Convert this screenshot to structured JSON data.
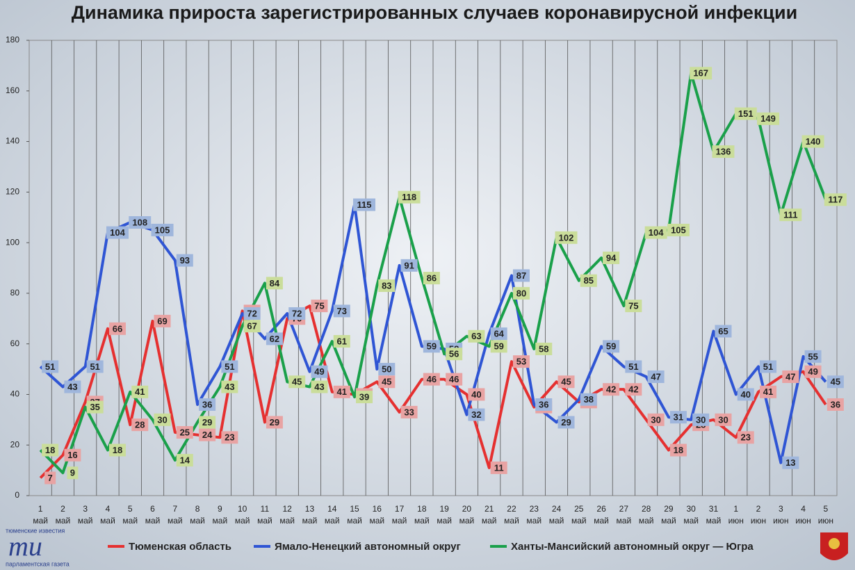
{
  "chart_data": {
    "type": "line",
    "title": "Динамика прироста зарегистрированных случаев коронавирусной инфекции",
    "categories": [
      "1 май",
      "2 май",
      "3 май",
      "4 май",
      "5 май",
      "6 май",
      "7 май",
      "8 май",
      "9 май",
      "10 май",
      "11 май",
      "12 май",
      "13 май",
      "14 май",
      "15 май",
      "16 май",
      "17 май",
      "18 май",
      "19 май",
      "20 май",
      "21 май",
      "22 май",
      "23 май",
      "24 май",
      "25 май",
      "26 май",
      "27 май",
      "28 май",
      "29 май",
      "30 май",
      "31 май",
      "1 июн",
      "2 июн",
      "3 июн",
      "4 июн",
      "5 июн"
    ],
    "series": [
      {
        "name": "Тюменская область",
        "color": "#e53030",
        "label_color": "#e8a3a3",
        "values": [
          7,
          16,
          37,
          66,
          28,
          69,
          25,
          24,
          23,
          73,
          29,
          70,
          75,
          41,
          40,
          45,
          33,
          46,
          46,
          40,
          11,
          53,
          35,
          45,
          37,
          42,
          42,
          30,
          18,
          28,
          30,
          23,
          41,
          47,
          49,
          36
        ]
      },
      {
        "name": "Ямало-Ненецкий автономный округ",
        "color": "#2f55d4",
        "label_color": "#9fb6dc",
        "values": [
          51,
          43,
          51,
          104,
          108,
          105,
          93,
          36,
          51,
          72,
          62,
          72,
          49,
          73,
          115,
          50,
          91,
          59,
          58,
          32,
          64,
          87,
          36,
          29,
          38,
          59,
          51,
          47,
          31,
          30,
          65,
          40,
          51,
          13,
          55,
          45
        ]
      },
      {
        "name": "Ханты-Мансийский автономный округ — Югра",
        "color": "#1aa04a",
        "label_color": "#cadd9a",
        "values": [
          18,
          9,
          35,
          18,
          41,
          30,
          14,
          29,
          43,
          67,
          84,
          45,
          43,
          61,
          39,
          83,
          118,
          86,
          56,
          63,
          59,
          80,
          58,
          102,
          85,
          94,
          75,
          104,
          105,
          167,
          136,
          151,
          149,
          111,
          140,
          117
        ]
      }
    ],
    "ylim": [
      0,
      180
    ],
    "yticks": [
      0,
      20,
      40,
      60,
      80,
      100,
      120,
      140,
      160,
      180
    ],
    "grid": true,
    "legend": "bottom",
    "logo": {
      "top": "тюменские известия",
      "mark": "ти",
      "bottom": "парламентская газета"
    }
  }
}
